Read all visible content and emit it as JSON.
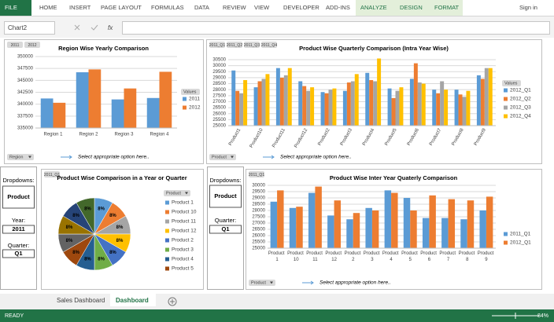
{
  "ribbon": {
    "tabs": [
      "FILE",
      "HOME",
      "INSERT",
      "PAGE LAYOUT",
      "FORMULAS",
      "DATA",
      "REVIEW",
      "VIEW",
      "DEVELOPER",
      "ADD-INS",
      "ANALYZE",
      "DESIGN",
      "FORMAT"
    ],
    "sign_in": "Sign in"
  },
  "formula_bar": {
    "name_box": "Chart2",
    "fx": "fx"
  },
  "panels": {
    "left": {
      "heading": "Dropdowns:",
      "product": "Product",
      "year_label": "Year:",
      "year": "2011",
      "quarter_label": "Quarter:",
      "quarter": "Q1"
    },
    "middle": {
      "heading": "Dropdowns:",
      "product": "Product",
      "quarter_label": "Quarter:",
      "quarter": "Q1"
    }
  },
  "chart_data": [
    {
      "type": "bar",
      "title": "Region Wise Yearly Comparison",
      "buttons": [
        "2011",
        "2012"
      ],
      "filter": "Region",
      "note": "Select appropriate option here..",
      "legend_title": "Values",
      "categories": [
        "Region 1",
        "Region 2",
        "Region 3",
        "Region 4"
      ],
      "series": [
        {
          "name": "2011",
          "color": "#5b9bd5",
          "values": [
            341200,
            346700,
            341000,
            341300
          ]
        },
        {
          "name": "2012",
          "color": "#ed7d31",
          "values": [
            340300,
            347300,
            343300,
            346800
          ]
        }
      ],
      "ylim": [
        335000,
        350000
      ],
      "yticks": [
        335000,
        337500,
        340000,
        342500,
        345000,
        347500,
        350000
      ],
      "grid": true
    },
    {
      "type": "bar",
      "title": "Product Wise Quarterly Comparison (Intra Year Wise)",
      "buttons": [
        "2011_Q1",
        "2011_Q2",
        "2011_Q3",
        "2011_Q4"
      ],
      "filter": "Product",
      "note": "Select appropriate option here..",
      "legend_title": "Values",
      "categories": [
        "Product1",
        "Product10",
        "Product11",
        "Product12",
        "Product2",
        "Product3",
        "Product4",
        "Product5",
        "Product6",
        "Product7",
        "Product8",
        "Product9"
      ],
      "series": [
        {
          "name": "2012_Q1",
          "color": "#5b9bd5",
          "values": [
            29600,
            28200,
            29800,
            28700,
            27800,
            27900,
            29400,
            28100,
            28900,
            28000,
            28000,
            29200
          ]
        },
        {
          "name": "2012_Q2",
          "color": "#ed7d31",
          "values": [
            27900,
            28700,
            29000,
            28300,
            27700,
            28600,
            28800,
            27300,
            30200,
            27700,
            27600,
            28900
          ]
        },
        {
          "name": "2012_Q3",
          "color": "#a5a5a5",
          "values": [
            27700,
            28900,
            29200,
            27900,
            28000,
            28700,
            28700,
            27900,
            28600,
            28700,
            27400,
            29800
          ]
        },
        {
          "name": "2012_Q4",
          "color": "#ffc000",
          "values": [
            28800,
            29300,
            29800,
            28200,
            28100,
            29300,
            30600,
            28200,
            28500,
            28000,
            27900,
            29800
          ]
        }
      ],
      "ylim": [
        25000,
        30500
      ],
      "yticks": [
        25000,
        25500,
        26000,
        26500,
        27000,
        27500,
        28000,
        28500,
        29000,
        29500,
        30000,
        30500
      ],
      "grid": true
    },
    {
      "type": "pie",
      "title": "Product Wise Comparison in a Year or Quarter",
      "buttons": [
        "2011_Q1"
      ],
      "filter": "Product",
      "categories": [
        "Product 1",
        "Product 10",
        "Product 11",
        "Product 12",
        "Product 2",
        "Product 3",
        "Product 4",
        "Product 5",
        null,
        null,
        null,
        null
      ],
      "values": [
        8,
        8,
        8,
        8,
        8,
        8,
        8,
        8,
        8,
        8,
        8,
        8
      ],
      "value_labels": [
        "8%",
        "8%",
        "8%",
        "8%",
        "8%",
        "8%",
        "8%",
        "8%",
        "8%",
        "8%",
        "8%",
        "8%"
      ],
      "colors": [
        "#5b9bd5",
        "#ed7d31",
        "#a5a5a5",
        "#ffc000",
        "#4472c4",
        "#70ad47",
        "#255e91",
        "#9e480e",
        "#636363",
        "#997300",
        "#264478",
        "#43682b"
      ]
    },
    {
      "type": "bar",
      "title": "Product Wise Inter Year Quaterly Comparison",
      "buttons": [
        "2011_Q1"
      ],
      "filter": "Product",
      "note": "Select appropriate option here..",
      "categories": [
        "Product 1",
        "Product 10",
        "Product 11",
        "Product 12",
        "Product 2",
        "Product 3",
        "Product 4",
        "Product 5",
        "Product 6",
        "Product 7",
        "Product 8",
        "Product 9"
      ],
      "series": [
        {
          "name": "2011_Q1",
          "color": "#5b9bd5",
          "values": [
            28700,
            28200,
            29400,
            27600,
            27300,
            28200,
            29600,
            29000,
            27400,
            27400,
            27300,
            28000
          ]
        },
        {
          "name": "2012_Q1",
          "color": "#ed7d31",
          "values": [
            29600,
            28300,
            29900,
            28800,
            27800,
            28000,
            29400,
            28000,
            29200,
            28900,
            28800,
            29100
          ]
        }
      ],
      "ylim": [
        25000,
        30000
      ],
      "yticks": [
        25000,
        25500,
        26000,
        26500,
        27000,
        27500,
        28000,
        28500,
        29000,
        29500,
        30000
      ],
      "grid": true
    }
  ],
  "sheet_tabs": [
    "Sales Dashboard",
    "Dashboard"
  ],
  "status_bar": {
    "state": "READY",
    "zoom": "84%"
  }
}
